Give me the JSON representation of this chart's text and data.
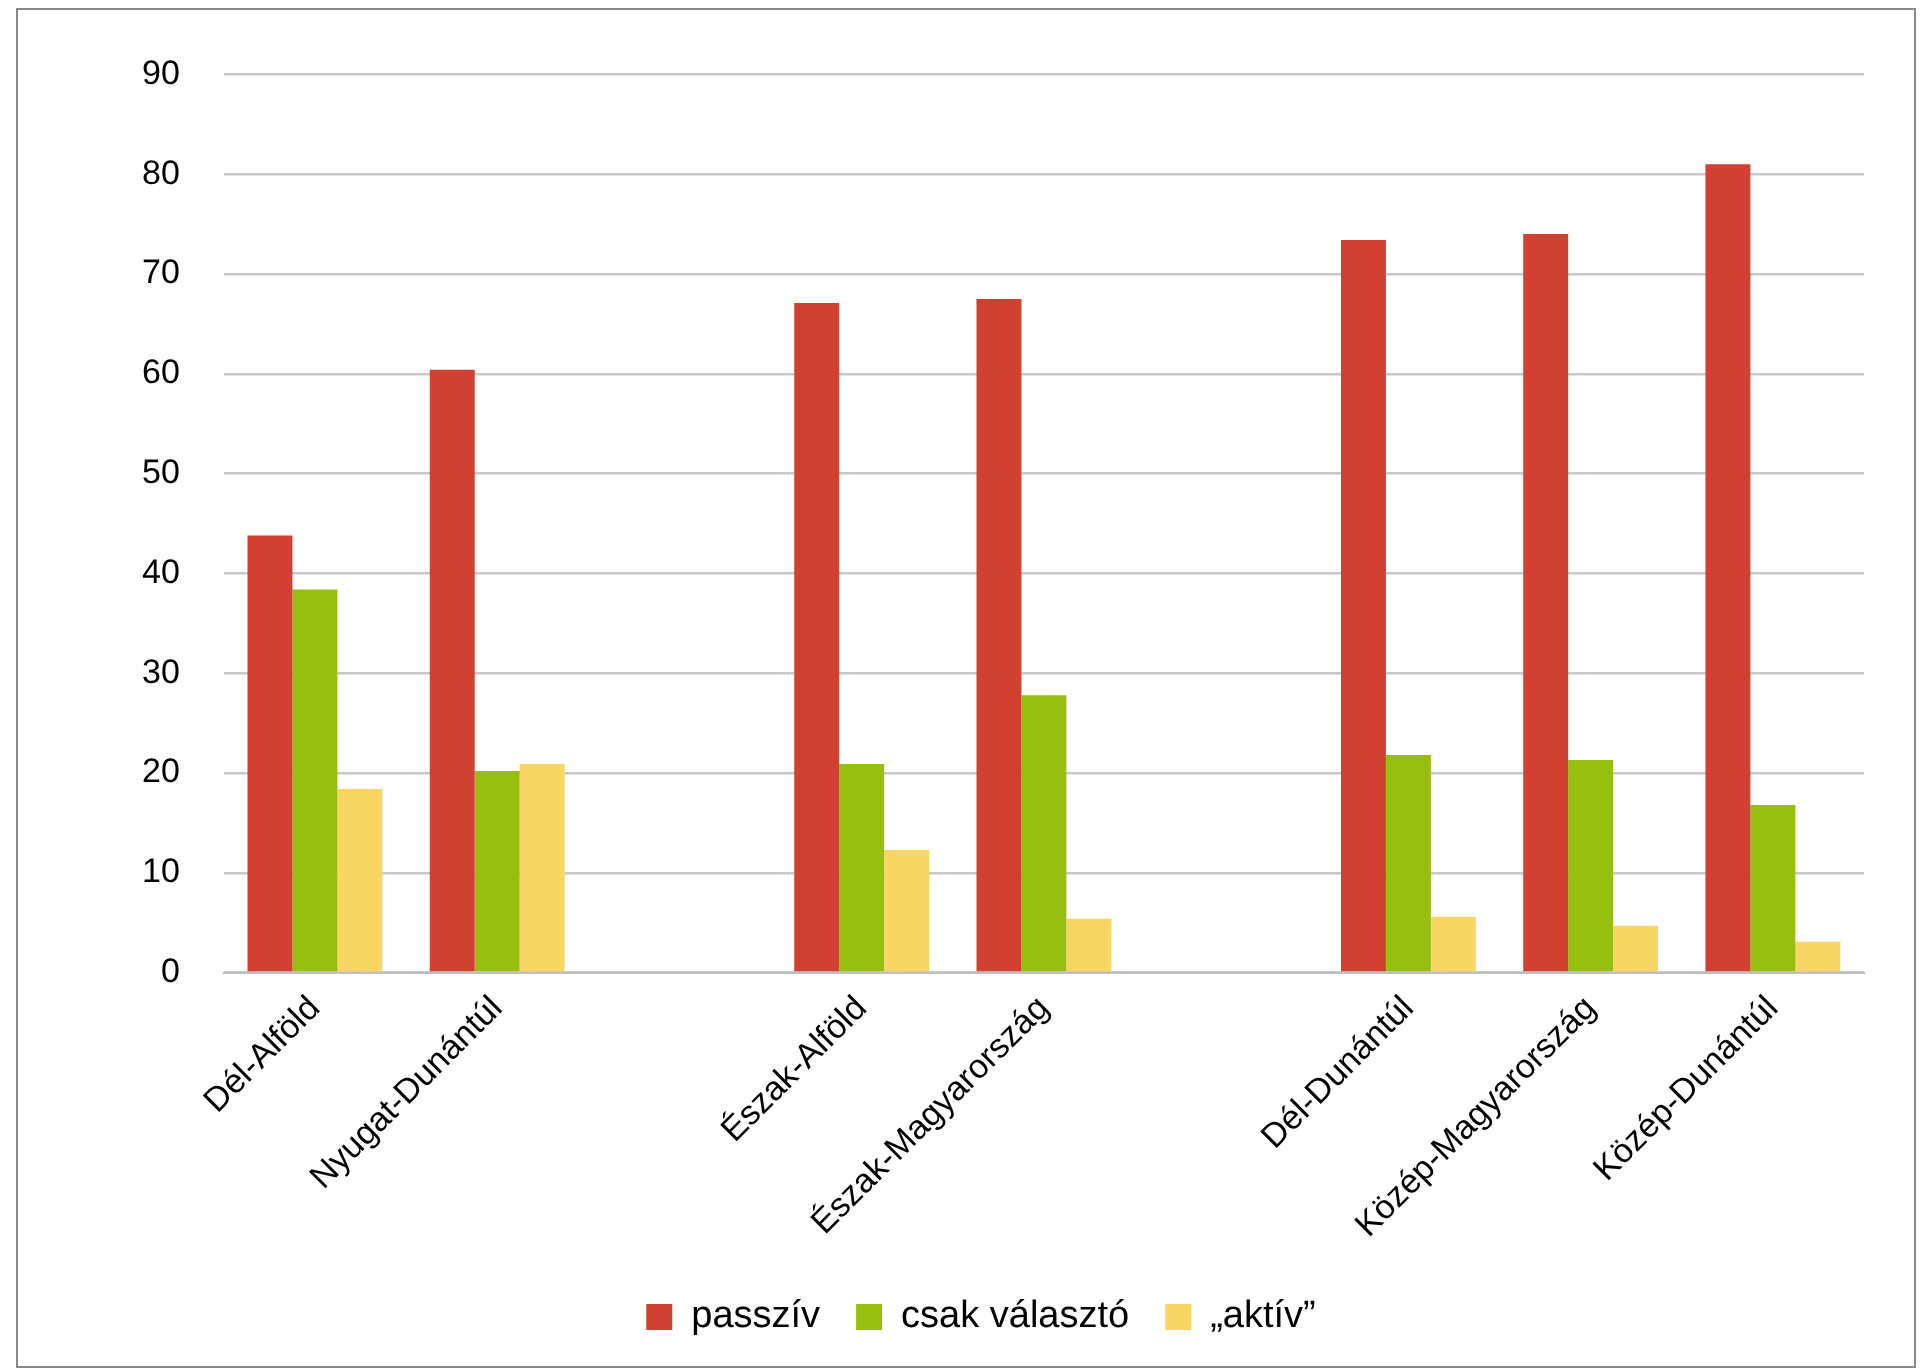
{
  "chart_data": {
    "type": "bar",
    "categories": [
      "Dél-Alföld",
      "Nyugat-Dunántúl",
      null,
      "Észak-Alföld",
      "Észak-Magyarország",
      null,
      "Dél-Dunántúl",
      "Közép-Magyarország",
      "Közép-Dunántúl"
    ],
    "series": [
      {
        "name": "passzív",
        "color": "#d04132",
        "values": [
          43.8,
          60.4,
          null,
          67.1,
          67.5,
          null,
          73.4,
          74.0,
          81.0
        ]
      },
      {
        "name": "csak választó",
        "color": "#97bf0f",
        "values": [
          38.4,
          20.2,
          null,
          20.9,
          27.8,
          null,
          21.8,
          21.3,
          16.8
        ]
      },
      {
        "name": "„aktív”",
        "color": "#f9d563",
        "values": [
          18.4,
          20.9,
          null,
          12.3,
          5.4,
          null,
          5.6,
          4.7,
          3.1
        ]
      }
    ],
    "ylim": [
      0,
      90
    ],
    "yticks": [
      0,
      10,
      20,
      30,
      40,
      50,
      60,
      70,
      80,
      90
    ],
    "grid": "y",
    "legend": "bottom"
  }
}
